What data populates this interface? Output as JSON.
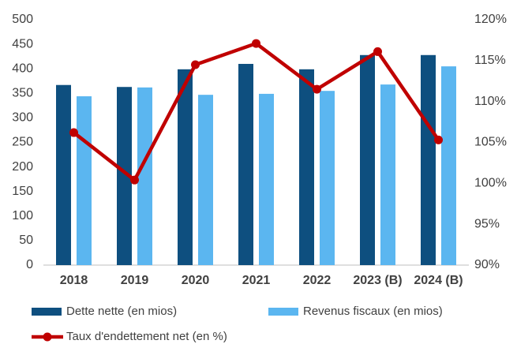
{
  "chart_data": {
    "type": "bar_line",
    "categories": [
      "2018",
      "2019",
      "2020",
      "2021",
      "2022",
      "2023 (B)",
      "2024 (B)"
    ],
    "series": [
      {
        "name": "Dette nette (en mios)",
        "color": "#0e4f7f",
        "type": "bar",
        "values": [
          367,
          363,
          399,
          410,
          399,
          428,
          428
        ]
      },
      {
        "name": "Revenus fiscaux (en mios)",
        "color": "#5bb6f0",
        "type": "bar",
        "values": [
          344,
          362,
          347,
          349,
          355,
          368,
          405
        ]
      },
      {
        "name": "Taux d'endettement net (en %)",
        "color": "#c00000",
        "type": "line",
        "axis": "y2",
        "values": [
          106.2,
          100.4,
          114.5,
          117.1,
          111.5,
          116.1,
          105.3
        ]
      }
    ],
    "ylim": [
      0,
      500
    ],
    "yticks": [
      0,
      50,
      100,
      150,
      200,
      250,
      300,
      350,
      400,
      450,
      500
    ],
    "y2lim": [
      90,
      120
    ],
    "y2ticks": [
      {
        "value": 90,
        "label": "90%"
      },
      {
        "value": 95,
        "label": "95%"
      },
      {
        "value": 100,
        "label": "100%"
      },
      {
        "value": 105,
        "label": "105%"
      },
      {
        "value": 110,
        "label": "110%"
      },
      {
        "value": 115,
        "label": "115%"
      },
      {
        "value": 120,
        "label": "120%"
      }
    ],
    "grid": false
  }
}
